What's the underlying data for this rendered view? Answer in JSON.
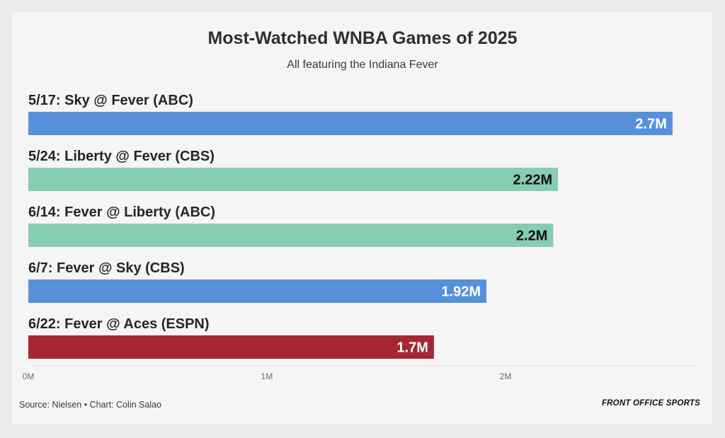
{
  "header": {
    "title": "Most-Watched WNBA Games of 2025",
    "subtitle": "All featuring the Indiana Fever"
  },
  "footer": {
    "source": "Source: Nielsen • Chart: Colin Salao",
    "brand": "FRONT OFFICE SPORTS"
  },
  "chart_data": {
    "type": "bar",
    "orientation": "horizontal",
    "title": "Most-Watched WNBA Games of 2025",
    "subtitle": "All featuring the Indiana Fever",
    "xlabel": "",
    "ylabel": "",
    "xlim": [
      0,
      2.8
    ],
    "grid": false,
    "legend": "none",
    "x_ticks": [
      {
        "value": 0,
        "label": "0M"
      },
      {
        "value": 1,
        "label": "1M"
      },
      {
        "value": 2,
        "label": "2M"
      }
    ],
    "bars": [
      {
        "category": "5/17: Sky @ Fever (ABC)",
        "value": 2.7,
        "label": "2.7M",
        "color": "#5590d9",
        "label_color": "#ffffff"
      },
      {
        "category": "5/24: Liberty @ Fever (CBS)",
        "value": 2.22,
        "label": "2.22M",
        "color": "#86cdb2",
        "label_color": "#111111"
      },
      {
        "category": "6/14: Fever @ Liberty (ABC)",
        "value": 2.2,
        "label": "2.2M",
        "color": "#86cdb2",
        "label_color": "#111111"
      },
      {
        "category": "6/7: Fever @ Sky (CBS)",
        "value": 1.92,
        "label": "1.92M",
        "color": "#5590d9",
        "label_color": "#ffffff"
      },
      {
        "category": "6/22: Fever @ Aces (ESPN)",
        "value": 1.7,
        "label": "1.7M",
        "color": "#a62733",
        "label_color": "#ffffff"
      }
    ]
  }
}
